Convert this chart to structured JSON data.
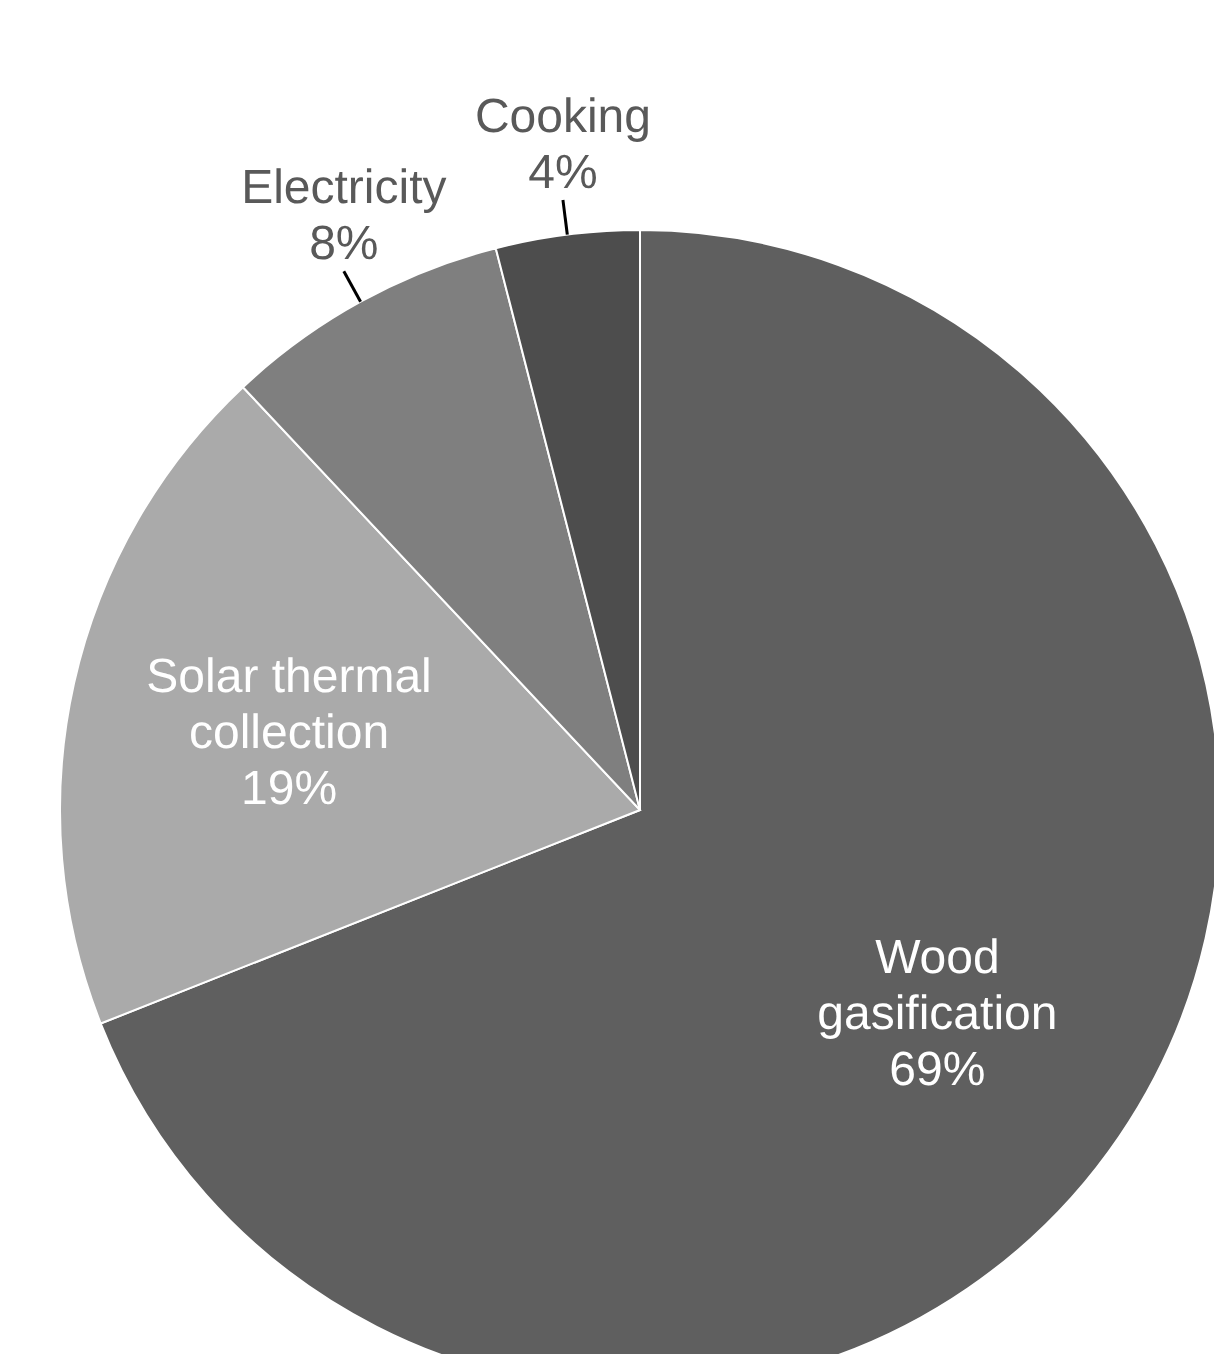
{
  "chart_data": {
    "type": "pie",
    "categories": [
      "Wood gasification",
      "Solar thermal collection",
      "Electricity",
      "Cooking"
    ],
    "values": [
      69,
      19,
      8,
      4
    ],
    "colors": [
      "#5f5f5f",
      "#aaaaaa",
      "#7f7f7f",
      "#4d4d4d"
    ],
    "value_labels": [
      "69%",
      "19%",
      "8%",
      "4%"
    ],
    "legend": false
  }
}
